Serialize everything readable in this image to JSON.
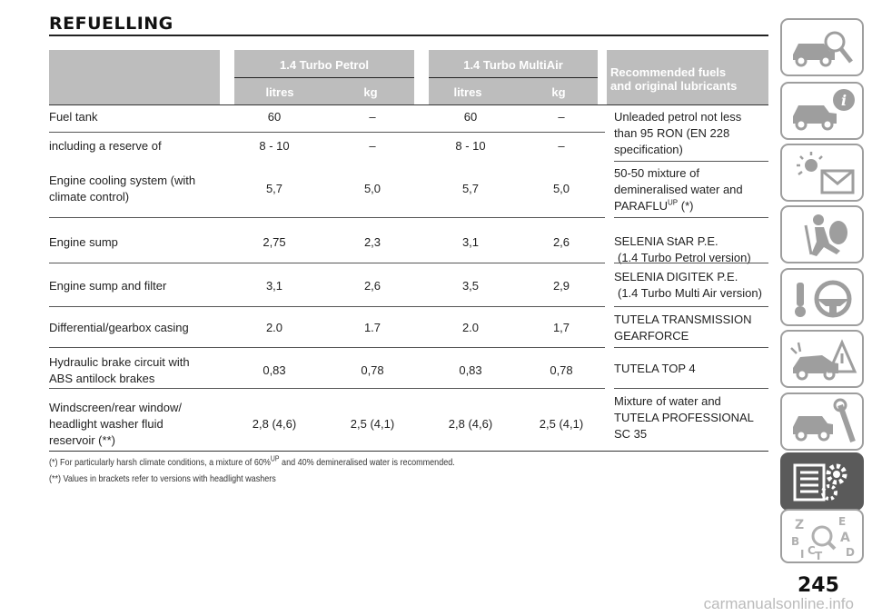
{
  "title": "REFUELLING",
  "header": {
    "group1": "1.4 Turbo Petrol",
    "group2": "1.4 Turbo MultiAir",
    "units": [
      "litres",
      "kg",
      "litres",
      "kg"
    ],
    "fuels_line1": "Recommended fuels",
    "fuels_line2": "and original lubricants"
  },
  "rows": [
    {
      "label1": "Fuel tank",
      "label2": "",
      "label3": "",
      "v": [
        "60",
        "–",
        "60",
        "–"
      ]
    },
    {
      "label1": "including a reserve of",
      "label2": "",
      "label3": "",
      "v": [
        "8 - 10",
        "–",
        "8 - 10",
        "–"
      ]
    },
    {
      "label1": "Engine cooling system (with",
      "label2": "climate control)",
      "label3": "",
      "v": [
        "5,7",
        "5,0",
        "5,7",
        "5,0"
      ]
    },
    {
      "label1": "Engine sump",
      "label2": "",
      "label3": "",
      "v": [
        "2,75",
        "2,3",
        "3,1",
        "2,6"
      ]
    },
    {
      "label1": "Engine sump and filter",
      "label2": "",
      "label3": "",
      "v": [
        "3,1",
        "2,6",
        "3,5",
        "2,9"
      ]
    },
    {
      "label1": "Differential/gearbox casing",
      "label2": "",
      "label3": "",
      "v": [
        "2.0",
        "1.7",
        "2.0",
        "1,7"
      ]
    },
    {
      "label1": "Hydraulic brake circuit with",
      "label2": "ABS antilock brakes",
      "label3": "",
      "v": [
        "0,83",
        "0,78",
        "0,83",
        "0,78"
      ]
    },
    {
      "label1": "Windscreen/rear window/",
      "label2": "headlight washer fluid",
      "label3": "reservoir (**)",
      "v": [
        "2,8 (4,6)",
        "2,5 (4,1)",
        "2,8 (4,6)",
        "2,5 (4,1)"
      ]
    }
  ],
  "fuels": {
    "petrol": [
      "Unleaded petrol not less",
      "than 95 RON (EN 228",
      "specification)"
    ],
    "coolant": [
      "50-50 mixture of",
      "demineralised water and",
      "PARAFLU",
      "UP",
      "(*)"
    ],
    "sump1": [
      "SELENIA StAR P.E.",
      "(1.4 Turbo Petrol version)"
    ],
    "sump2": [
      "SELENIA DIGITEK P.E.",
      "(1.4 Turbo Multi Air version)"
    ],
    "gear": [
      "TUTELA TRANSMISSION",
      "GEARFORCE"
    ],
    "brake": [
      "TUTELA TOP 4"
    ],
    "washer": [
      "Mixture of water and",
      "TUTELA PROFESSIONAL",
      "SC 35"
    ]
  },
  "notes": {
    "n1a": "(*) For particularly harsh climate conditions, a mixture of 60%",
    "n1sup": "UP",
    "n1b": "and 40% demineralised water is recommended.",
    "n2": "(**) Values in brackets refer to versions with headlight washers"
  },
  "tabs": [
    "car-search-icon",
    "car-info-icon",
    "warning-lights-icon",
    "airbag-icon",
    "steering-wheel-icon",
    "car-accident-icon",
    "car-wrench-icon",
    "specs-gear-icon",
    "alphabet-index-icon"
  ],
  "page_number": "245",
  "watermark": "carmanualsonline.info"
}
